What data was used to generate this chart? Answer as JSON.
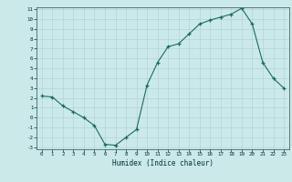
{
  "x": [
    0,
    1,
    2,
    3,
    4,
    5,
    6,
    7,
    8,
    9,
    10,
    11,
    12,
    13,
    14,
    15,
    16,
    17,
    18,
    19,
    20,
    21,
    22,
    23
  ],
  "y": [
    2.2,
    2.1,
    1.2,
    0.6,
    0.0,
    -0.8,
    -2.7,
    -2.8,
    -2.0,
    -1.2,
    3.3,
    5.6,
    7.2,
    7.5,
    8.5,
    9.5,
    9.9,
    10.2,
    10.5,
    11.1,
    9.5,
    5.6,
    4.0,
    3.0
  ],
  "line_color": "#1a6b5a",
  "marker_color": "#1a6b5a",
  "bg_color": "#cce9e9",
  "grid_color": "#a8d0d0",
  "xlabel": "Humidex (Indice chaleur)",
  "ylim": [
    -3,
    11
  ],
  "xlim": [
    -0.5,
    23.5
  ],
  "yticks": [
    -3,
    -2,
    -1,
    0,
    1,
    2,
    3,
    4,
    5,
    6,
    7,
    8,
    9,
    10,
    11
  ],
  "xticks": [
    0,
    1,
    2,
    3,
    4,
    5,
    6,
    7,
    8,
    9,
    10,
    11,
    12,
    13,
    14,
    15,
    16,
    17,
    18,
    19,
    20,
    21,
    22,
    23
  ],
  "title_color": "#003333",
  "tick_color": "#003333"
}
